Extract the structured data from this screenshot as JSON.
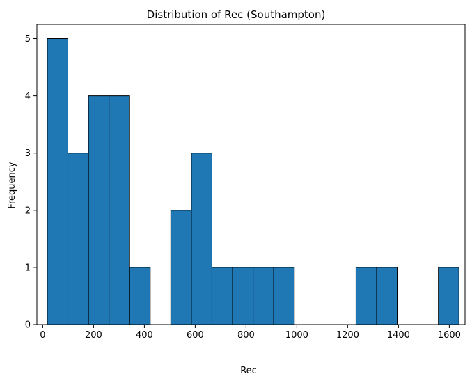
{
  "chart_data": {
    "type": "bar",
    "title": "Distribution of Rec (Southampton)",
    "xlabel": "Rec",
    "ylabel": "Frequency",
    "xlim": [
      -23,
      1662
    ],
    "ylim": [
      0,
      5.25
    ],
    "x_ticks": [
      0,
      200,
      400,
      600,
      800,
      1000,
      1200,
      1400,
      1600
    ],
    "y_ticks": [
      0,
      1,
      2,
      3,
      4,
      5
    ],
    "bin_edges": [
      18,
      99,
      180,
      261,
      342,
      423,
      504,
      585,
      666,
      747,
      828,
      909,
      990,
      1071,
      1152,
      1233,
      1314,
      1395,
      1476,
      1557,
      1638
    ],
    "values": [
      5,
      3,
      4,
      4,
      1,
      0,
      2,
      3,
      1,
      1,
      1,
      1,
      0,
      0,
      0,
      1,
      1,
      0,
      0,
      1
    ],
    "bar_color": "#1f77b4",
    "edge_color": "#000000",
    "grid": false,
    "legend": "none"
  }
}
